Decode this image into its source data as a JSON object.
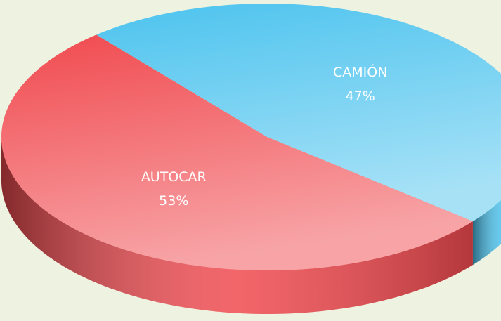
{
  "chart_data": {
    "type": "pie",
    "categories": [
      "CAMIÓN",
      "AUTOCAR"
    ],
    "values": [
      47,
      53
    ],
    "value_labels": [
      "47%",
      "53%"
    ],
    "colors": [
      "#4cc3ee",
      "#f04a4f"
    ]
  }
}
